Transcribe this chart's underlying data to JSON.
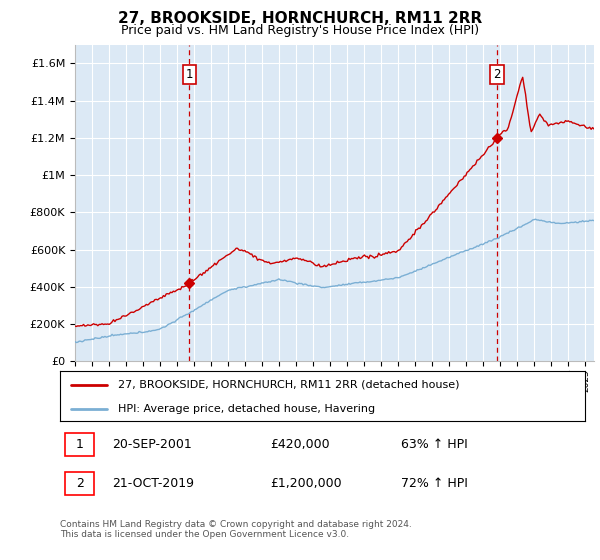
{
  "title": "27, BROOKSIDE, HORNCHURCH, RM11 2RR",
  "subtitle": "Price paid vs. HM Land Registry's House Price Index (HPI)",
  "plot_bg_color": "#dce9f5",
  "grid_color": "#ffffff",
  "ylim": [
    0,
    1700000
  ],
  "yticks": [
    0,
    200000,
    400000,
    600000,
    800000,
    1000000,
    1200000,
    1400000,
    1600000
  ],
  "ytick_labels": [
    "£0",
    "£200K",
    "£400K",
    "£600K",
    "£800K",
    "£1M",
    "£1.2M",
    "£1.4M",
    "£1.6M"
  ],
  "sale1_date": 2001.72,
  "sale1_price": 420000,
  "sale2_date": 2019.8,
  "sale2_price": 1200000,
  "legend_line1": "27, BROOKSIDE, HORNCHURCH, RM11 2RR (detached house)",
  "legend_line2": "HPI: Average price, detached house, Havering",
  "annotation1_text": "20-SEP-2001",
  "annotation1_price": "£420,000",
  "annotation1_pct": "63% ↑ HPI",
  "annotation2_text": "21-OCT-2019",
  "annotation2_price": "£1,200,000",
  "annotation2_pct": "72% ↑ HPI",
  "footer": "Contains HM Land Registry data © Crown copyright and database right 2024.\nThis data is licensed under the Open Government Licence v3.0.",
  "red_color": "#cc0000",
  "blue_color": "#7bafd4",
  "xmin": 1995.0,
  "xmax": 2025.5
}
